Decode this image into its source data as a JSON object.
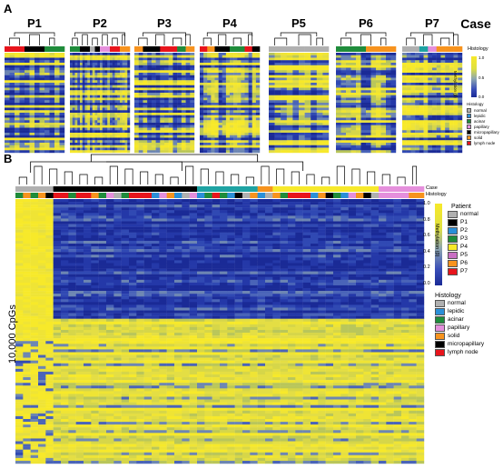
{
  "panel_a": {
    "label": "A",
    "case_title": "Case",
    "histology_row_label": "Histology",
    "colorbar_title": "Methylation (β)",
    "colorbar_ticks": [
      "0.0",
      "0.5",
      "1.0"
    ],
    "panels": [
      {
        "title": "P1",
        "histology": [
          "red",
          "red",
          "black",
          "black",
          "green",
          "green"
        ]
      },
      {
        "title": "P2",
        "histology": [
          "green",
          "green",
          "black",
          "black",
          "gray",
          "black",
          "pink",
          "pink",
          "red",
          "red",
          "orange",
          "orange"
        ]
      },
      {
        "title": "P3",
        "histology": [
          "orange",
          "black",
          "black",
          "red",
          "red",
          "green",
          "orange"
        ]
      },
      {
        "title": "P4",
        "histology": [
          "red",
          "orange",
          "black",
          "black",
          "green",
          "green",
          "red",
          "black"
        ]
      },
      {
        "title": "P5",
        "histology": [
          "gray",
          "gray",
          "gray",
          "gray",
          "gray"
        ]
      },
      {
        "title": "P6",
        "histology": [
          "green",
          "green",
          "green",
          "orange",
          "orange",
          "orange"
        ]
      },
      {
        "title": "P7",
        "histology": [
          "gray",
          "gray",
          "teal",
          "pink",
          "orange",
          "orange",
          "orange"
        ]
      }
    ],
    "histology_legend": {
      "title": "Histology",
      "items": [
        {
          "label": "normal",
          "color": "#b0b0b0"
        },
        {
          "label": "lepidic",
          "color": "#2b8fd8"
        },
        {
          "label": "acinar",
          "color": "#1f8c3b"
        },
        {
          "label": "papillary",
          "color": "#e58fdc"
        },
        {
          "label": "micropapillary",
          "color": "#000000"
        },
        {
          "label": "solid",
          "color": "#f7931e"
        },
        {
          "label": "lymph node",
          "color": "#e8141c"
        }
      ]
    }
  },
  "panel_b": {
    "label": "B",
    "case_row_label": "Case",
    "histology_row_label": "Histology",
    "y_axis_label": "10,000 CpGs",
    "colorbar_title": "Methylation (β)",
    "colorbar_ticks": [
      "1.0",
      "0.8",
      "0.6",
      "0.4",
      "0.2",
      "0.0"
    ],
    "patient_legend": {
      "title": "Patient",
      "items": [
        {
          "label": "normal",
          "color": "#b0b0b0"
        },
        {
          "label": "P1",
          "color": "#000000"
        },
        {
          "label": "P2",
          "color": "#2b8fd8"
        },
        {
          "label": "P3",
          "color": "#1f8c3b"
        },
        {
          "label": "P4",
          "color": "#f7e92a"
        },
        {
          "label": "P5",
          "color": "#c96fc3"
        },
        {
          "label": "P6",
          "color": "#f7931e"
        },
        {
          "label": "P7",
          "color": "#e8141c"
        }
      ]
    },
    "histology_legend": {
      "title": "Histology",
      "items": [
        {
          "label": "normal",
          "color": "#b0b0b0"
        },
        {
          "label": "lepidic",
          "color": "#2b8fd8"
        },
        {
          "label": "acinar",
          "color": "#1f8c3b"
        },
        {
          "label": "papillary",
          "color": "#e58fdc"
        },
        {
          "label": "solid",
          "color": "#f7931e"
        },
        {
          "label": "micropapillary",
          "color": "#000000"
        },
        {
          "label": "lymph node",
          "color": "#e8141c"
        }
      ]
    },
    "case_row": [
      "gray",
      "gray",
      "gray",
      "gray",
      "gray",
      "black",
      "black",
      "black",
      "black",
      "black",
      "black",
      "black",
      "black",
      "black",
      "black",
      "black",
      "black",
      "black",
      "black",
      "black",
      "black",
      "black",
      "black",
      "black",
      "teal",
      "teal",
      "teal",
      "teal",
      "teal",
      "teal",
      "teal",
      "teal",
      "orange",
      "orange",
      "yellow",
      "yellow",
      "yellow",
      "yellow",
      "yellow",
      "yellow",
      "yellow",
      "yellow",
      "yellow",
      "yellow",
      "yellow",
      "yellow",
      "yellow",
      "yellow",
      "pink",
      "pink",
      "pink",
      "pink",
      "pink",
      "pink"
    ],
    "histology_row": [
      "green",
      "orange",
      "green",
      "orange",
      "black",
      "red",
      "red",
      "green",
      "red",
      "red",
      "orange",
      "green",
      "pink",
      "gray",
      "green",
      "red",
      "red",
      "red",
      "blue",
      "pink",
      "orange",
      "blue",
      "gray",
      "pink",
      "blue",
      "green",
      "red",
      "green",
      "blue",
      "black",
      "gray",
      "orange",
      "blue",
      "gray",
      "orange",
      "green",
      "red",
      "red",
      "red",
      "blue",
      "orange",
      "black",
      "green",
      "blue",
      "pink",
      "orange",
      "black",
      "gray",
      "pink",
      "pink",
      "pink",
      "pink",
      "orange",
      "orange"
    ]
  },
  "colors": {
    "blue_dark": "#1a2a96",
    "blue": "#3049b3",
    "yellow": "#f7e92a",
    "yellow_mid": "#e4de44"
  }
}
